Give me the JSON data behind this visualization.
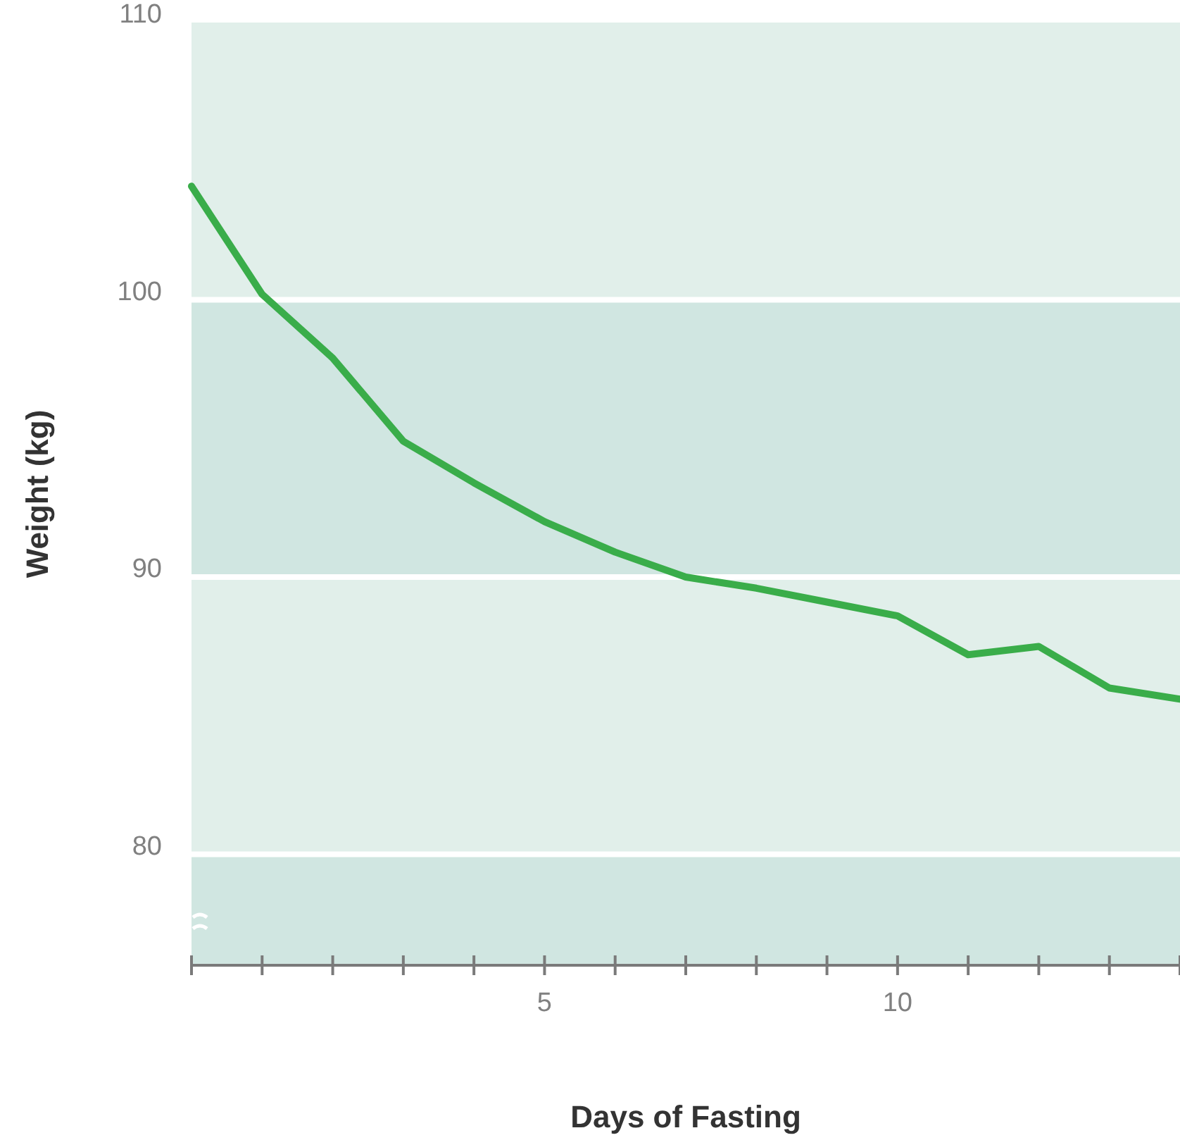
{
  "chart_data": {
    "type": "line",
    "xlabel": "Days of Fasting",
    "ylabel": "Weight (kg)",
    "x": [
      0,
      1,
      2,
      3,
      4,
      5,
      6,
      7,
      8,
      9,
      10,
      11,
      12,
      13,
      14
    ],
    "series": [
      {
        "color": "#3aad4a",
        "values": [
          104.1,
          100.2,
          97.9,
          94.9,
          93.4,
          92.0,
          90.9,
          90.0,
          89.6,
          89.1,
          88.6,
          87.2,
          87.5,
          86.0,
          85.6
        ]
      }
    ],
    "xlim": [
      0,
      14
    ],
    "xticks": [
      {
        "value": 0,
        "label": null
      },
      {
        "value": 1,
        "label": null
      },
      {
        "value": 2,
        "label": null
      },
      {
        "value": 3,
        "label": null
      },
      {
        "value": 4,
        "label": null
      },
      5,
      {
        "value": 6,
        "label": null
      },
      {
        "value": 7,
        "label": null
      },
      {
        "value": 8,
        "label": null
      },
      {
        "value": 9,
        "label": null
      },
      10,
      {
        "value": 11,
        "label": null
      },
      {
        "value": 12,
        "label": null
      },
      {
        "value": 13,
        "label": null
      },
      {
        "value": 14,
        "label": null
      }
    ],
    "ylim": [
      76,
      110
    ],
    "yticks": [
      80,
      90,
      100,
      110
    ],
    "bands": [
      {
        "axis": "y",
        "from": 100,
        "to": 110,
        "color": "#e1efea"
      },
      {
        "axis": "y",
        "from": 90,
        "to": 100,
        "color": "#d0e6e1"
      },
      {
        "axis": "y",
        "from": 80,
        "to": 90,
        "color": "#e1efea"
      },
      {
        "axis": "y",
        "from": 76,
        "to": 80,
        "color": "#d0e6e1"
      }
    ],
    "grid": "y",
    "line_style": "solid",
    "marker": "none"
  }
}
